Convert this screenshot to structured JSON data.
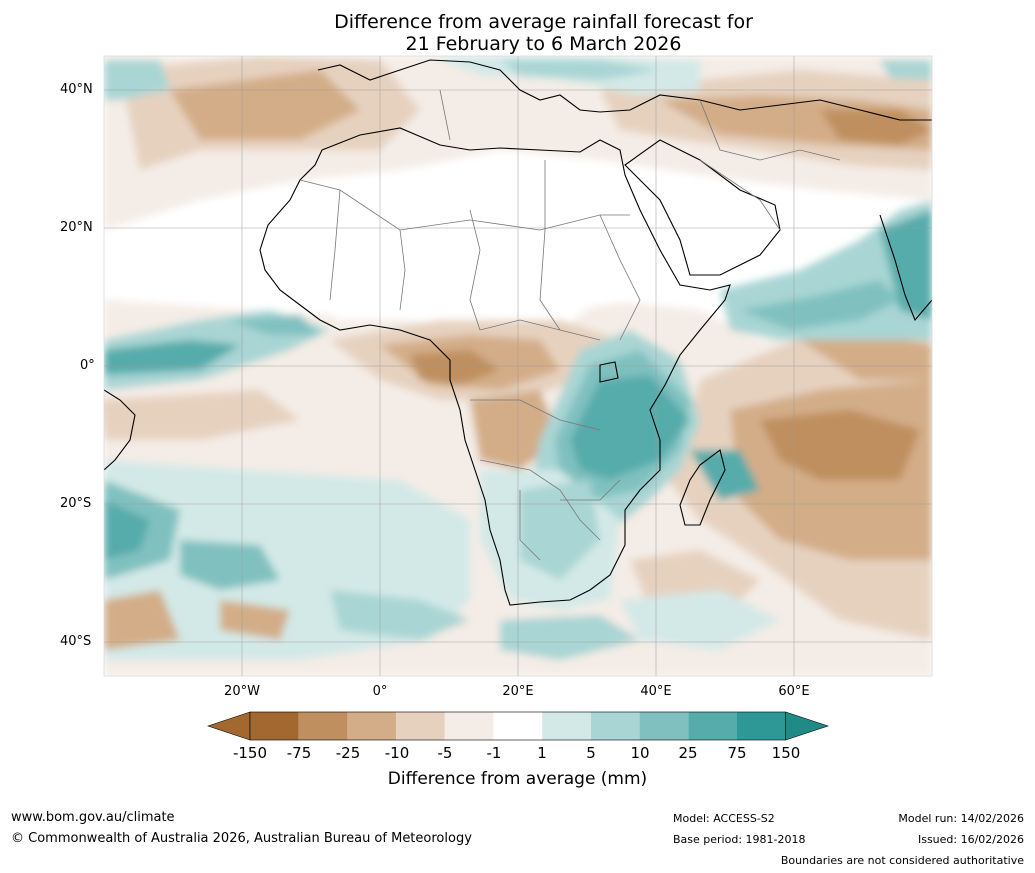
{
  "title": {
    "line1": "Difference from average rainfall forecast for",
    "line2": "21 February to 6 March 2026"
  },
  "axes": {
    "lat_labels": [
      "40°N",
      "20°N",
      "0°",
      "20°S",
      "40°S"
    ],
    "lon_labels": [
      "20°W",
      "0°",
      "20°E",
      "40°E",
      "60°E"
    ]
  },
  "legend": {
    "title": "Difference from average (mm)",
    "labels": [
      "-150",
      "-75",
      "-25",
      "-10",
      "-5",
      "-1",
      "1",
      "5",
      "10",
      "25",
      "75",
      "150"
    ],
    "colors": [
      "#a26830",
      "#bf8f5f",
      "#d3ad88",
      "#e6d1bf",
      "#f4ece6",
      "#ffffff",
      "#d3e9e7",
      "#a9d5d4",
      "#80c1c0",
      "#56acab",
      "#2d9895",
      "#1f8a86"
    ]
  },
  "footer": {
    "url": "www.bom.gov.au/climate",
    "copyright": "© Commonwealth of Australia 2026, Australian Bureau of Meteorology",
    "model": "Model: ACCESS-S2",
    "base_period": "Base period: 1981-2018",
    "model_run": "Model run: 14/02/2026",
    "issued": "Issued: 16/02/2026",
    "disclaimer": "Boundaries are not considered authoritative"
  }
}
